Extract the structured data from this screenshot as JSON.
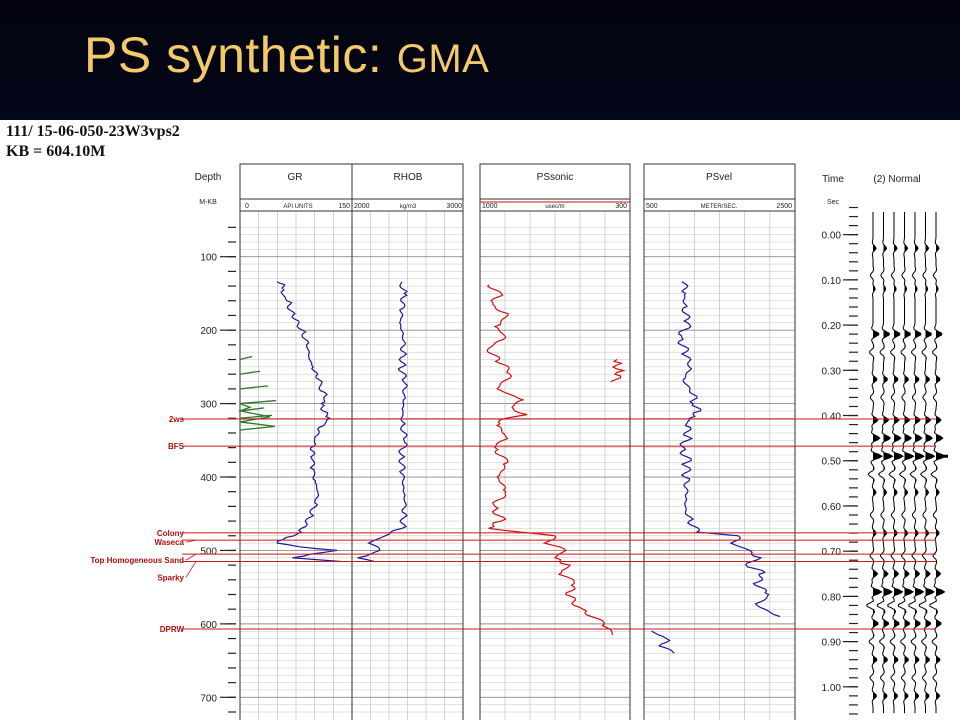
{
  "slide": {
    "title_main": "PS synthetic: ",
    "title_sub": "GMA",
    "background_color": "#0a0f3a",
    "title_color": "#f3c969"
  },
  "well": {
    "id": "111/ 15-06-050-23W3vps2",
    "kb": "KB = 604.10M"
  },
  "chart_data": {
    "type": "line",
    "depth_track": {
      "label": "Depth",
      "unit": "M-KB",
      "ticks": [
        100,
        200,
        300,
        400,
        500,
        600,
        700
      ],
      "ylim": [
        50,
        720
      ]
    },
    "time_track": {
      "label": "Time",
      "unit": "Sec",
      "ticks": [
        "0.00",
        "0.10",
        "0.20",
        "0.30",
        "0.40",
        "0.50",
        "0.60",
        "0.70",
        "0.80",
        "0.90",
        "1.00"
      ],
      "ylim": [
        -0.07,
        1.08
      ]
    },
    "tracks": [
      {
        "name": "GR",
        "unit": "API UNITS",
        "scale_left": "0",
        "scale_right": "150",
        "color": "#1a1aa0",
        "series": [
          {
            "name": "GR",
            "points": [
              [
                134,
                50
              ],
              [
                136,
                53
              ],
              [
                140,
                59
              ],
              [
                148,
                55
              ],
              [
                160,
                63
              ],
              [
                175,
                71
              ],
              [
                190,
                79
              ],
              [
                205,
                84
              ],
              [
                220,
                89
              ],
              [
                235,
                92
              ],
              [
                250,
                98
              ],
              [
                260,
                104
              ],
              [
                270,
                110
              ],
              [
                280,
                106
              ],
              [
                290,
                114
              ],
              [
                300,
                109
              ],
              [
                310,
                111
              ],
              [
                320,
                120
              ],
              [
                330,
                112
              ],
              [
                340,
                106
              ],
              [
                350,
                100
              ],
              [
                360,
                95
              ],
              [
                375,
                96
              ],
              [
                390,
                99
              ],
              [
                405,
                101
              ],
              [
                420,
                104
              ],
              [
                435,
                100
              ],
              [
                450,
                95
              ],
              [
                465,
                90
              ],
              [
                475,
                82
              ],
              [
                480,
                72
              ],
              [
                485,
                58
              ],
              [
                490,
                50
              ],
              [
                495,
                80
              ],
              [
                500,
                130
              ],
              [
                505,
                95
              ],
              [
                510,
                70
              ],
              [
                515,
                135
              ]
            ]
          }
        ]
      },
      {
        "name": "RHOB",
        "unit": "kg/m3",
        "scale_left": "2000",
        "scale_right": "3000",
        "color": "#1a1aa0",
        "series": [
          {
            "name": "RHOB",
            "points": [
              [
                134,
                2450
              ],
              [
                150,
                2470
              ],
              [
                170,
                2460
              ],
              [
                190,
                2430
              ],
              [
                210,
                2455
              ],
              [
                230,
                2470
              ],
              [
                250,
                2450
              ],
              [
                270,
                2465
              ],
              [
                290,
                2475
              ],
              [
                310,
                2460
              ],
              [
                330,
                2455
              ],
              [
                350,
                2470
              ],
              [
                370,
                2450
              ],
              [
                390,
                2460
              ],
              [
                410,
                2455
              ],
              [
                430,
                2470
              ],
              [
                450,
                2480
              ],
              [
                470,
                2450
              ],
              [
                480,
                2300
              ],
              [
                490,
                2150
              ],
              [
                500,
                2250
              ],
              [
                510,
                2050
              ],
              [
                515,
                2200
              ]
            ]
          }
        ]
      },
      {
        "name": "PSsonic",
        "unit": "usec/m",
        "scale_left": "1000",
        "scale_right": "300",
        "color": "#cc1111",
        "series": [
          {
            "name": "PSsonic",
            "points": [
              [
                138,
                960
              ],
              [
                150,
                900
              ],
              [
                165,
                940
              ],
              [
                180,
                870
              ],
              [
                195,
                930
              ],
              [
                210,
                880
              ],
              [
                225,
                960
              ],
              [
                240,
                910
              ],
              [
                260,
                860
              ],
              [
                280,
                920
              ],
              [
                295,
                800
              ],
              [
                305,
                850
              ],
              [
                315,
                780
              ],
              [
                320,
                880
              ],
              [
                330,
                920
              ],
              [
                345,
                880
              ],
              [
                360,
                930
              ],
              [
                380,
                870
              ],
              [
                400,
                920
              ],
              [
                420,
                880
              ],
              [
                440,
                930
              ],
              [
                460,
                900
              ],
              [
                470,
                960
              ],
              [
                480,
                650
              ],
              [
                490,
                700
              ],
              [
                500,
                600
              ],
              [
                510,
                650
              ],
              [
                520,
                580
              ],
              [
                530,
                620
              ],
              [
                545,
                560
              ],
              [
                560,
                600
              ],
              [
                580,
                520
              ],
              [
                600,
                420
              ],
              [
                615,
                380
              ]
            ]
          },
          {
            "name": "PSsonic",
            "points": [
              [
                240,
                360
              ],
              [
                245,
                340
              ],
              [
                250,
                380
              ],
              [
                255,
                330
              ],
              [
                260,
                370
              ],
              [
                265,
                345
              ],
              [
                270,
                390
              ]
            ]
          }
        ]
      },
      {
        "name": "PSvel",
        "unit": "METER/SEC.",
        "scale_left": "500",
        "scale_right": "2500",
        "color": "#1a1aa0",
        "series": [
          {
            "name": "PSvel",
            "points": [
              [
                134,
                1000
              ],
              [
                150,
                1050
              ],
              [
                170,
                1020
              ],
              [
                190,
                1080
              ],
              [
                210,
                1000
              ],
              [
                230,
                1050
              ],
              [
                250,
                1100
              ],
              [
                270,
                1020
              ],
              [
                290,
                1200
              ],
              [
                300,
                1150
              ],
              [
                310,
                1250
              ],
              [
                320,
                1100
              ],
              [
                330,
                1050
              ],
              [
                345,
                1080
              ],
              [
                360,
                1030
              ],
              [
                380,
                1070
              ],
              [
                400,
                1040
              ],
              [
                420,
                1080
              ],
              [
                440,
                1050
              ],
              [
                460,
                1100
              ],
              [
                475,
                1200
              ],
              [
                480,
                1750
              ],
              [
                490,
                1650
              ],
              [
                500,
                1900
              ],
              [
                510,
                2050
              ],
              [
                520,
                1850
              ],
              [
                530,
                2100
              ],
              [
                545,
                1950
              ],
              [
                560,
                2150
              ],
              [
                575,
                2000
              ],
              [
                590,
                2300
              ]
            ]
          },
          {
            "name": "PSvel",
            "points": [
              [
                610,
                600
              ],
              [
                620,
                800
              ],
              [
                630,
                700
              ],
              [
                640,
                900
              ]
            ]
          }
        ]
      }
    ],
    "lithology_track": {
      "color": "#2a7a2a",
      "points": [
        [
          240,
          0.3
        ],
        [
          260,
          0.5
        ],
        [
          280,
          0.7
        ],
        [
          300,
          0.9
        ],
        [
          310,
          0.6
        ],
        [
          320,
          0.8
        ]
      ]
    },
    "markers": [
      {
        "name": "2ws",
        "depth": 321
      },
      {
        "name": "BFS",
        "depth": 358
      },
      {
        "name": "Colony",
        "depth": 476
      },
      {
        "name": "Waseca",
        "depth": 486
      },
      {
        "name": "Top Homogeneous Sand",
        "depth": 505
      },
      {
        "name": "Sparky",
        "depth": 515
      },
      {
        "name": "DPRW",
        "depth": 607
      }
    ],
    "synthetic": {
      "label": "(2) Normal",
      "traces": 7,
      "reflectors": [
        {
          "t": 0.03,
          "a": 0.35
        },
        {
          "t": 0.09,
          "a": -0.3
        },
        {
          "t": 0.12,
          "a": 0.25
        },
        {
          "t": 0.22,
          "a": 0.7
        },
        {
          "t": 0.26,
          "a": -0.4
        },
        {
          "t": 0.32,
          "a": 0.45
        },
        {
          "t": 0.36,
          "a": -0.3
        },
        {
          "t": 0.41,
          "a": 0.55
        },
        {
          "t": 0.45,
          "a": 0.75
        },
        {
          "t": 0.49,
          "a": 1.0
        },
        {
          "t": 0.53,
          "a": -0.55
        },
        {
          "t": 0.57,
          "a": 0.35
        },
        {
          "t": 0.62,
          "a": -0.3
        },
        {
          "t": 0.66,
          "a": 0.35
        },
        {
          "t": 0.71,
          "a": -0.35
        },
        {
          "t": 0.75,
          "a": 0.5
        },
        {
          "t": 0.79,
          "a": 0.95
        },
        {
          "t": 0.82,
          "a": -0.75
        },
        {
          "t": 0.86,
          "a": 0.6
        },
        {
          "t": 0.9,
          "a": -0.45
        },
        {
          "t": 0.94,
          "a": 0.45
        },
        {
          "t": 0.98,
          "a": -0.35
        },
        {
          "t": 1.02,
          "a": 0.4
        }
      ]
    }
  }
}
